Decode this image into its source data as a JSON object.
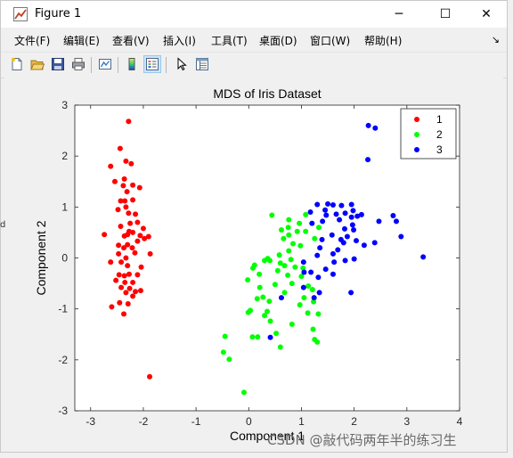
{
  "window": {
    "title": "Figure 1",
    "icon": "matlab-figure-icon",
    "controls": {
      "minimize": "─",
      "maximize": "☐",
      "close": "✕"
    }
  },
  "menu": [
    {
      "id": "file",
      "label": "文件(F)"
    },
    {
      "id": "edit",
      "label": "编辑(E)"
    },
    {
      "id": "view",
      "label": "查看(V)"
    },
    {
      "id": "insert",
      "label": "插入(I)"
    },
    {
      "id": "tools",
      "label": "工具(T)"
    },
    {
      "id": "desktop",
      "label": "桌面(D)"
    },
    {
      "id": "window",
      "label": "窗口(W)"
    },
    {
      "id": "help",
      "label": "帮助(H)"
    }
  ],
  "menu_more": "↘",
  "toolbar": [
    {
      "name": "new-figure-icon"
    },
    {
      "name": "open-file-icon"
    },
    {
      "name": "save-icon"
    },
    {
      "name": "print-icon"
    },
    {
      "name": "link-plot-icon"
    },
    {
      "name": "insert-colorbar-icon"
    },
    {
      "name": "insert-legend-icon",
      "active": true
    },
    {
      "name": "edit-plot-arrow-icon"
    },
    {
      "name": "property-inspector-icon"
    }
  ],
  "colors": {
    "class1": "#ff0000",
    "class2": "#00ff00",
    "class3": "#0000ff"
  },
  "edge_letter": "d",
  "watermark": "CSDN @敲代码两年半的练习生",
  "chart_data": {
    "type": "scatter",
    "title": "MDS of Iris Dataset",
    "xlabel": "Component 1",
    "ylabel": "Component 2",
    "xlim": [
      -3.3,
      4
    ],
    "ylim": [
      -3,
      3
    ],
    "xticks": [
      -3,
      -2,
      -1,
      0,
      1,
      2,
      3,
      4
    ],
    "yticks": [
      -3,
      -2,
      -1,
      0,
      1,
      2,
      3
    ],
    "legend_position": "top-right",
    "series": [
      {
        "name": "1",
        "color": "#ff0000",
        "points": [
          [
            -2.28,
            2.68
          ],
          [
            -2.44,
            2.15
          ],
          [
            -2.33,
            1.9
          ],
          [
            -2.23,
            1.85
          ],
          [
            -2.62,
            1.8
          ],
          [
            -2.36,
            1.55
          ],
          [
            -2.54,
            1.5
          ],
          [
            -2.38,
            1.42
          ],
          [
            -2.2,
            1.43
          ],
          [
            -2.07,
            1.38
          ],
          [
            -2.31,
            1.3
          ],
          [
            -2.43,
            1.12
          ],
          [
            -2.35,
            1.12
          ],
          [
            -2.2,
            1.14
          ],
          [
            -2.33,
            1.0
          ],
          [
            -2.48,
            0.95
          ],
          [
            -2.28,
            0.88
          ],
          [
            -2.15,
            0.86
          ],
          [
            -2.25,
            0.68
          ],
          [
            -2.11,
            0.7
          ],
          [
            -2.43,
            0.62
          ],
          [
            -2.0,
            0.58
          ],
          [
            -2.27,
            0.52
          ],
          [
            -2.2,
            0.5
          ],
          [
            -2.74,
            0.46
          ],
          [
            -2.36,
            0.43
          ],
          [
            -2.3,
            0.46
          ],
          [
            -2.06,
            0.44
          ],
          [
            -1.9,
            0.42
          ],
          [
            -1.98,
            0.38
          ],
          [
            -2.11,
            0.33
          ],
          [
            -2.47,
            0.25
          ],
          [
            -2.3,
            0.26
          ],
          [
            -2.37,
            0.2
          ],
          [
            -2.21,
            0.2
          ],
          [
            -2.47,
            0.08
          ],
          [
            -2.16,
            0.1
          ],
          [
            -1.87,
            0.08
          ],
          [
            -2.33,
            0.0
          ],
          [
            -2.62,
            -0.08
          ],
          [
            -2.42,
            -0.08
          ],
          [
            -2.3,
            -0.15
          ],
          [
            -2.04,
            -0.18
          ],
          [
            -2.46,
            -0.33
          ],
          [
            -2.36,
            -0.35
          ],
          [
            -2.27,
            -0.32
          ],
          [
            -2.11,
            -0.33
          ],
          [
            -2.52,
            -0.44
          ],
          [
            -2.35,
            -0.48
          ],
          [
            -2.2,
            -0.48
          ],
          [
            -2.42,
            -0.58
          ],
          [
            -2.26,
            -0.6
          ],
          [
            -2.15,
            -0.66
          ],
          [
            -2.33,
            -0.68
          ],
          [
            -2.05,
            -0.64
          ],
          [
            -2.2,
            -0.75
          ],
          [
            -2.6,
            -0.96
          ],
          [
            -2.45,
            -0.88
          ],
          [
            -2.29,
            -0.9
          ],
          [
            -2.37,
            -1.1
          ],
          [
            -1.88,
            -2.33
          ]
        ]
      },
      {
        "name": "2",
        "color": "#00ff00",
        "points": [
          [
            0.44,
            0.84
          ],
          [
            0.76,
            0.75
          ],
          [
            1.08,
            0.85
          ],
          [
            0.96,
            0.68
          ],
          [
            0.75,
            0.6
          ],
          [
            0.62,
            0.55
          ],
          [
            0.92,
            0.52
          ],
          [
            1.08,
            0.52
          ],
          [
            1.33,
            0.6
          ],
          [
            1.25,
            0.38
          ],
          [
            0.76,
            0.45
          ],
          [
            0.66,
            0.38
          ],
          [
            0.84,
            0.28
          ],
          [
            0.98,
            0.24
          ],
          [
            0.76,
            0.14
          ],
          [
            0.58,
            0.06
          ],
          [
            0.8,
            -0.03
          ],
          [
            0.6,
            -0.1
          ],
          [
            0.4,
            -0.05
          ],
          [
            0.36,
            -0.01
          ],
          [
            0.68,
            -0.15
          ],
          [
            0.88,
            -0.18
          ],
          [
            1.03,
            -0.2
          ],
          [
            0.55,
            -0.25
          ],
          [
            0.3,
            -0.05
          ],
          [
            0.11,
            -0.14
          ],
          [
            0.08,
            -0.2
          ],
          [
            -0.02,
            -0.43
          ],
          [
            0.2,
            -0.32
          ],
          [
            0.5,
            -0.52
          ],
          [
            0.74,
            -0.34
          ],
          [
            1.0,
            -0.36
          ],
          [
            0.82,
            -0.5
          ],
          [
            1.13,
            -0.55
          ],
          [
            1.21,
            -0.62
          ],
          [
            0.68,
            -0.68
          ],
          [
            1.05,
            -0.78
          ],
          [
            1.23,
            -0.86
          ],
          [
            1.12,
            -1.08
          ],
          [
            1.32,
            -1.1
          ],
          [
            0.97,
            -0.92
          ],
          [
            0.21,
            -0.58
          ],
          [
            0.16,
            -0.8
          ],
          [
            0.27,
            -0.77
          ],
          [
            0.39,
            -0.85
          ],
          [
            0.35,
            -1.05
          ],
          [
            0.3,
            -1.13
          ],
          [
            0.41,
            -1.24
          ],
          [
            0.03,
            -1.03
          ],
          [
            -0.01,
            -1.07
          ],
          [
            0.07,
            -1.55
          ],
          [
            0.17,
            -1.55
          ],
          [
            0.52,
            -1.48
          ],
          [
            0.82,
            -1.3
          ],
          [
            1.22,
            -1.4
          ],
          [
            1.25,
            -1.6
          ],
          [
            0.6,
            -1.75
          ],
          [
            -0.45,
            -1.54
          ],
          [
            -0.48,
            -1.85
          ],
          [
            -0.37,
            -1.99
          ],
          [
            -0.09,
            -2.64
          ],
          [
            1.3,
            -1.65
          ]
        ]
      },
      {
        "name": "3",
        "color": "#0000ff",
        "points": [
          [
            2.27,
            2.6
          ],
          [
            2.4,
            2.55
          ],
          [
            2.26,
            1.93
          ],
          [
            1.6,
            1.04
          ],
          [
            1.76,
            1.03
          ],
          [
            1.95,
            1.05
          ],
          [
            1.5,
            1.06
          ],
          [
            1.3,
            1.05
          ],
          [
            1.83,
            0.88
          ],
          [
            1.98,
            0.93
          ],
          [
            1.66,
            0.86
          ],
          [
            1.72,
            0.75
          ],
          [
            1.95,
            0.8
          ],
          [
            2.06,
            0.82
          ],
          [
            2.14,
            0.85
          ],
          [
            2.74,
            0.83
          ],
          [
            2.8,
            0.72
          ],
          [
            2.47,
            0.72
          ],
          [
            1.17,
            0.9
          ],
          [
            1.47,
            0.84
          ],
          [
            1.4,
            0.72
          ],
          [
            1.2,
            0.68
          ],
          [
            1.82,
            0.57
          ],
          [
            1.99,
            0.55
          ],
          [
            1.97,
            0.65
          ],
          [
            1.58,
            0.45
          ],
          [
            1.87,
            0.42
          ],
          [
            2.19,
            0.25
          ],
          [
            2.39,
            0.3
          ],
          [
            2.04,
            0.34
          ],
          [
            1.75,
            0.36
          ],
          [
            1.39,
            0.36
          ],
          [
            1.35,
            0.2
          ],
          [
            1.69,
            0.16
          ],
          [
            1.8,
            0.3
          ],
          [
            2.89,
            0.42
          ],
          [
            1.6,
            0.08
          ],
          [
            1.3,
            0.05
          ],
          [
            1.62,
            -0.08
          ],
          [
            1.83,
            -0.05
          ],
          [
            1.04,
            -0.08
          ],
          [
            1.05,
            -0.28
          ],
          [
            1.32,
            -0.38
          ],
          [
            1.18,
            -0.28
          ],
          [
            1.46,
            -0.22
          ],
          [
            1.6,
            -0.32
          ],
          [
            2.0,
            -0.02
          ],
          [
            1.04,
            -0.58
          ],
          [
            1.34,
            -0.68
          ],
          [
            1.24,
            -0.78
          ],
          [
            1.94,
            -0.68
          ],
          [
            0.62,
            -0.78
          ],
          [
            3.31,
            0.02
          ],
          [
            0.41,
            -1.56
          ],
          [
            1.45,
            0.94
          ]
        ]
      }
    ]
  }
}
